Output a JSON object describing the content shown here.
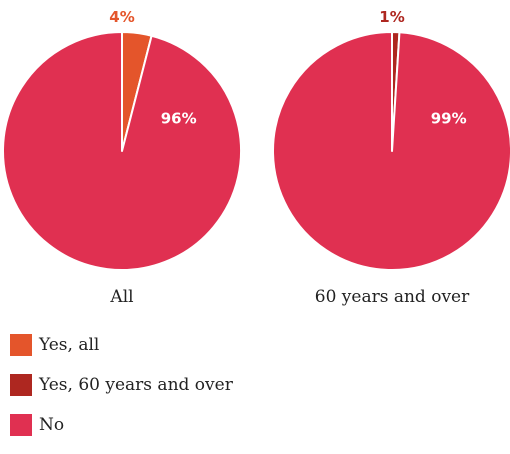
{
  "chart_data": {
    "type": "pie",
    "colors": {
      "yes_all": "#E4552B",
      "yes_60": "#AE2720",
      "no": "#E03051"
    },
    "legend": [
      {
        "label": "Yes, all",
        "color_key": "yes_all"
      },
      {
        "label": "Yes, 60 years and over",
        "color_key": "yes_60"
      },
      {
        "label": "No",
        "color_key": "no"
      }
    ],
    "charts": [
      {
        "caption": "All",
        "slices": [
          {
            "label": "Yes, all",
            "value": 4,
            "display": "4%",
            "color_key": "yes_all"
          },
          {
            "label": "No",
            "value": 96,
            "display": "96%",
            "color_key": "no"
          }
        ]
      },
      {
        "caption": "60 years and over",
        "slices": [
          {
            "label": "Yes, 60 years and over",
            "value": 1,
            "display": "1%",
            "color_key": "yes_60"
          },
          {
            "label": "No",
            "value": 99,
            "display": "99%",
            "color_key": "no"
          }
        ]
      }
    ]
  }
}
